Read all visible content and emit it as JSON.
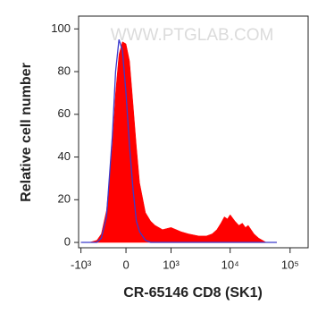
{
  "chart_data": {
    "type": "histogram-overlay",
    "xlabel": "CR-65146 CD8 (SK1)",
    "ylabel": "Relative cell number",
    "annotation": "WWW.PTGLAB.COM",
    "xscale": "biexponential",
    "x": [
      -1000,
      -700,
      -500,
      -400,
      -300,
      -200,
      -150,
      -100,
      -50,
      0,
      50,
      100,
      150,
      200,
      300,
      400,
      500,
      700,
      1000,
      1500,
      2000,
      3000,
      4000,
      5000,
      6000,
      7000,
      8000,
      9000,
      10000,
      12000,
      14000,
      16000,
      18000,
      20000,
      25000,
      30000,
      40000,
      60000
    ],
    "series": [
      {
        "color": "#ff0000",
        "fill": true,
        "values": [
          0,
          0,
          1,
          4,
          15,
          45,
          70,
          88,
          94,
          93,
          85,
          65,
          45,
          28,
          14,
          10,
          8,
          6,
          7,
          5,
          4,
          3,
          3,
          4,
          6,
          9,
          12,
          11,
          13,
          10,
          8,
          9,
          7,
          8,
          4,
          2,
          0,
          0
        ]
      },
      {
        "color": "#3a3acc",
        "fill": false,
        "values": [
          0,
          0,
          0,
          2,
          12,
          50,
          80,
          95,
          90,
          70,
          45,
          25,
          10,
          5,
          1,
          0,
          0,
          0,
          0,
          0,
          0,
          0,
          0,
          0,
          0,
          0,
          0,
          0,
          0,
          0,
          0,
          0,
          0,
          0,
          0,
          0,
          0,
          0
        ]
      }
    ],
    "xlim": [
      -1100,
      200000
    ],
    "xticks": [
      {
        "value": -1000,
        "label": "-10³"
      },
      0,
      {
        "value": 1000,
        "label": "10³"
      },
      {
        "value": 10000,
        "label": "10⁴"
      },
      {
        "value": 100000,
        "label": "10⁵"
      }
    ],
    "ylim": [
      -2.5,
      106
    ],
    "yticks": [
      0,
      20,
      40,
      60,
      80,
      100
    ]
  }
}
